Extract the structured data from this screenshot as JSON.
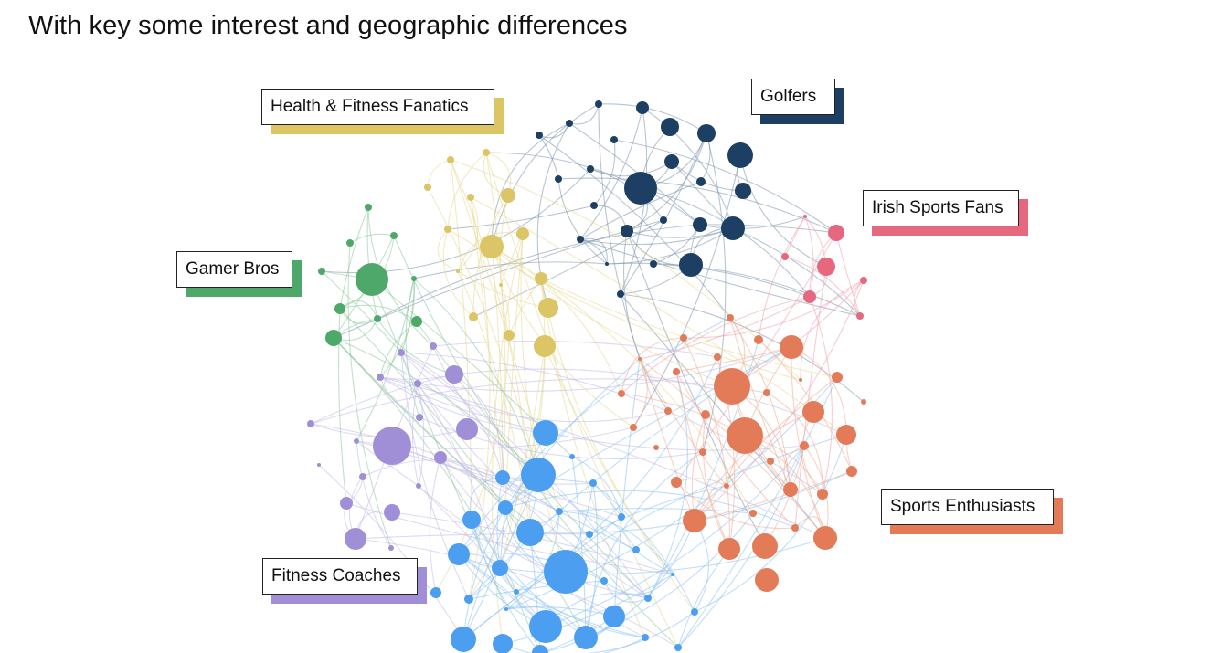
{
  "header": {
    "title": "",
    "subtitle": "With key some interest and geographic differences"
  },
  "colors": {
    "health": "#dcc565",
    "golfers": "#1c3f63",
    "irish": "#e6687f",
    "gamer": "#4ea86a",
    "fitness": "#a08fd7",
    "sports": "#e37b58",
    "core": "#4c9ff0"
  },
  "clusters": [
    {
      "id": "health",
      "label": "Health & Fitness Fanatics",
      "color": "#dcc565"
    },
    {
      "id": "golfers",
      "label": "Golfers",
      "color": "#1c3f63"
    },
    {
      "id": "irish",
      "label": "Irish Sports Fans",
      "color": "#e6687f"
    },
    {
      "id": "gamer",
      "label": "Gamer Bros",
      "color": "#4ea86a"
    },
    {
      "id": "sports",
      "label": "Sports Enthusiasts",
      "color": "#e37b58"
    },
    {
      "id": "fitness",
      "label": "Fitness Coaches",
      "color": "#a08fd7"
    }
  ]
}
